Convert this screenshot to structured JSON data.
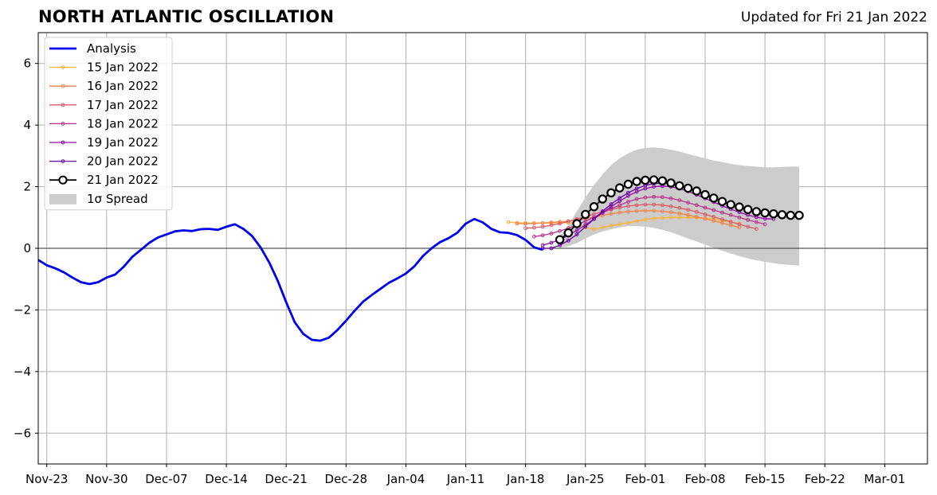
{
  "chart_data": {
    "type": "line",
    "title": "NORTH ATLANTIC OSCILLATION",
    "subtitle": "Updated for Fri 21 Jan 2022",
    "xlabel": "",
    "ylabel": "",
    "xlim": [
      "2021-11-22",
      "2022-03-06"
    ],
    "ylim": [
      -7,
      7
    ],
    "x_ticks": [
      "2021-11-23",
      "2021-11-30",
      "2021-12-07",
      "2021-12-14",
      "2021-12-21",
      "2021-12-28",
      "2022-01-04",
      "2022-01-11",
      "2022-01-18",
      "2022-01-25",
      "2022-02-01",
      "2022-02-08",
      "2022-02-15",
      "2022-02-22",
      "2022-03-01"
    ],
    "x_tick_labels": [
      "Nov-23",
      "Nov-30",
      "Dec-07",
      "Dec-14",
      "Dec-21",
      "Dec-28",
      "Jan-04",
      "Jan-11",
      "Jan-18",
      "Jan-25",
      "Feb-01",
      "Feb-08",
      "Feb-15",
      "Feb-22",
      "Mar-01"
    ],
    "y_ticks": [
      -6,
      -4,
      -2,
      0,
      2,
      4,
      6
    ],
    "y_tick_labels": [
      "−6",
      "−4",
      "−2",
      "0",
      "2",
      "4",
      "6"
    ],
    "grid": true,
    "legend_position": "top-left",
    "zero_line": true,
    "analysis": {
      "name": "Analysis",
      "color": "#0000ee",
      "points": [
        [
          "2021-11-22",
          -0.38
        ],
        [
          "2021-11-23",
          -0.55
        ],
        [
          "2021-11-24",
          -0.65
        ],
        [
          "2021-11-25",
          -0.78
        ],
        [
          "2021-11-26",
          -0.95
        ],
        [
          "2021-11-27",
          -1.1
        ],
        [
          "2021-11-28",
          -1.16
        ],
        [
          "2021-11-29",
          -1.1
        ],
        [
          "2021-11-30",
          -0.95
        ],
        [
          "2021-12-01",
          -0.85
        ],
        [
          "2021-12-02",
          -0.6
        ],
        [
          "2021-12-03",
          -0.28
        ],
        [
          "2021-12-04",
          -0.05
        ],
        [
          "2021-12-05",
          0.18
        ],
        [
          "2021-12-06",
          0.35
        ],
        [
          "2021-12-07",
          0.45
        ],
        [
          "2021-12-08",
          0.55
        ],
        [
          "2021-12-09",
          0.58
        ],
        [
          "2021-12-10",
          0.56
        ],
        [
          "2021-12-11",
          0.62
        ],
        [
          "2021-12-12",
          0.63
        ],
        [
          "2021-12-13",
          0.6
        ],
        [
          "2021-12-14",
          0.7
        ],
        [
          "2021-12-15",
          0.78
        ],
        [
          "2021-12-16",
          0.63
        ],
        [
          "2021-12-17",
          0.4
        ],
        [
          "2021-12-18",
          0.03
        ],
        [
          "2021-12-19",
          -0.45
        ],
        [
          "2021-12-20",
          -1.05
        ],
        [
          "2021-12-21",
          -1.75
        ],
        [
          "2021-12-22",
          -2.4
        ],
        [
          "2021-12-23",
          -2.78
        ],
        [
          "2021-12-24",
          -2.97
        ],
        [
          "2021-12-25",
          -3.0
        ],
        [
          "2021-12-26",
          -2.9
        ],
        [
          "2021-12-27",
          -2.65
        ],
        [
          "2021-12-28",
          -2.35
        ],
        [
          "2021-12-29",
          -2.03
        ],
        [
          "2021-12-30",
          -1.73
        ],
        [
          "2021-12-31",
          -1.52
        ],
        [
          "2022-01-01",
          -1.32
        ],
        [
          "2022-01-02",
          -1.12
        ],
        [
          "2022-01-03",
          -0.98
        ],
        [
          "2022-01-04",
          -0.82
        ],
        [
          "2022-01-05",
          -0.58
        ],
        [
          "2022-01-06",
          -0.25
        ],
        [
          "2022-01-07",
          0.0
        ],
        [
          "2022-01-08",
          0.2
        ],
        [
          "2022-01-09",
          0.33
        ],
        [
          "2022-01-10",
          0.5
        ],
        [
          "2022-01-11",
          0.8
        ],
        [
          "2022-01-12",
          0.95
        ],
        [
          "2022-01-13",
          0.84
        ],
        [
          "2022-01-14",
          0.63
        ],
        [
          "2022-01-15",
          0.52
        ],
        [
          "2022-01-16",
          0.5
        ],
        [
          "2022-01-17",
          0.43
        ],
        [
          "2022-01-18",
          0.27
        ],
        [
          "2022-01-19",
          0.03
        ],
        [
          "2022-01-20",
          -0.05
        ]
      ]
    },
    "forecasts": [
      {
        "name": "15 Jan 2022",
        "color": "#fbb338",
        "start": "2022-01-16",
        "values": [
          0.85,
          0.83,
          0.82,
          0.82,
          0.82,
          0.82,
          0.83,
          0.83,
          0.8,
          0.68,
          0.62,
          0.68,
          0.73,
          0.78,
          0.83,
          0.88,
          0.93,
          0.97,
          0.99,
          1.0,
          1.0,
          1.0,
          0.99,
          0.97,
          0.95,
          0.9,
          0.85,
          0.8
        ]
      },
      {
        "name": "16 Jan 2022",
        "color": "#f2844b",
        "start": "2022-01-17",
        "values": [
          0.8,
          0.8,
          0.81,
          0.82,
          0.84,
          0.86,
          0.88,
          0.92,
          0.96,
          1.02,
          1.07,
          1.12,
          1.16,
          1.19,
          1.21,
          1.22,
          1.22,
          1.2,
          1.17,
          1.13,
          1.08,
          1.02,
          0.96,
          0.89,
          0.82,
          0.75,
          0.68
        ]
      },
      {
        "name": "17 Jan 2022",
        "color": "#db5c68",
        "start": "2022-01-18",
        "values": [
          0.65,
          0.67,
          0.7,
          0.75,
          0.8,
          0.87,
          0.95,
          1.03,
          1.11,
          1.19,
          1.26,
          1.32,
          1.37,
          1.4,
          1.42,
          1.42,
          1.4,
          1.36,
          1.31,
          1.25,
          1.18,
          1.1,
          1.02,
          0.94,
          0.86,
          0.78,
          0.7,
          0.63
        ]
      },
      {
        "name": "18 Jan 2022",
        "color": "#b7358a",
        "start": "2022-01-19",
        "values": [
          0.38,
          0.42,
          0.48,
          0.56,
          0.65,
          0.76,
          0.88,
          1.01,
          1.15,
          1.28,
          1.4,
          1.51,
          1.6,
          1.65,
          1.67,
          1.66,
          1.62,
          1.56,
          1.48,
          1.4,
          1.32,
          1.24,
          1.16,
          1.08,
          1.0,
          0.92,
          0.85,
          0.78
        ]
      },
      {
        "name": "19 Jan 2022",
        "color": "#8f0da4",
        "start": "2022-01-20",
        "values": [
          0.1,
          0.18,
          0.28,
          0.42,
          0.58,
          0.76,
          0.95,
          1.15,
          1.35,
          1.53,
          1.7,
          1.84,
          1.94,
          2.0,
          2.02,
          2.0,
          1.94,
          1.85,
          1.74,
          1.62,
          1.5,
          1.38,
          1.27,
          1.17,
          1.08,
          1.01,
          0.96,
          0.95
        ]
      },
      {
        "name": "20 Jan 2022",
        "color": "#6a00a8",
        "start": "2022-01-20",
        "values": [
          0.0,
          0.0,
          0.1,
          0.25,
          0.45,
          0.7,
          0.95,
          1.2,
          1.43,
          1.63,
          1.8,
          1.94,
          2.04,
          2.1,
          2.12,
          2.1,
          2.05,
          1.97,
          1.87,
          1.76,
          1.65,
          1.54,
          1.43,
          1.33,
          1.24,
          1.16,
          1.1,
          1.05,
          1.03
        ]
      },
      {
        "name": "21 Jan 2022",
        "color": "#000000",
        "start": "2022-01-22",
        "values": [
          0.28,
          0.5,
          0.8,
          1.1,
          1.35,
          1.6,
          1.8,
          1.96,
          2.08,
          2.17,
          2.21,
          2.22,
          2.19,
          2.12,
          2.03,
          1.95,
          1.86,
          1.74,
          1.63,
          1.52,
          1.42,
          1.34,
          1.26,
          1.19,
          1.15,
          1.12,
          1.09,
          1.07,
          1.07
        ]
      }
    ],
    "spread": {
      "name": "1σ Spread",
      "color": "#cccccc",
      "start": "2022-01-22",
      "upper": [
        0.4,
        0.75,
        1.2,
        1.65,
        2.05,
        2.4,
        2.7,
        2.92,
        3.08,
        3.2,
        3.26,
        3.27,
        3.25,
        3.2,
        3.14,
        3.06,
        2.99,
        2.92,
        2.85,
        2.8,
        2.74,
        2.7,
        2.67,
        2.65,
        2.63,
        2.63,
        2.64,
        2.65,
        2.65
      ],
      "lower": [
        0.02,
        0.07,
        0.17,
        0.32,
        0.45,
        0.55,
        0.62,
        0.68,
        0.72,
        0.72,
        0.7,
        0.66,
        0.6,
        0.52,
        0.42,
        0.32,
        0.22,
        0.12,
        0.02,
        -0.08,
        -0.17,
        -0.25,
        -0.33,
        -0.39,
        -0.44,
        -0.48,
        -0.52,
        -0.54,
        -0.56
      ]
    }
  }
}
